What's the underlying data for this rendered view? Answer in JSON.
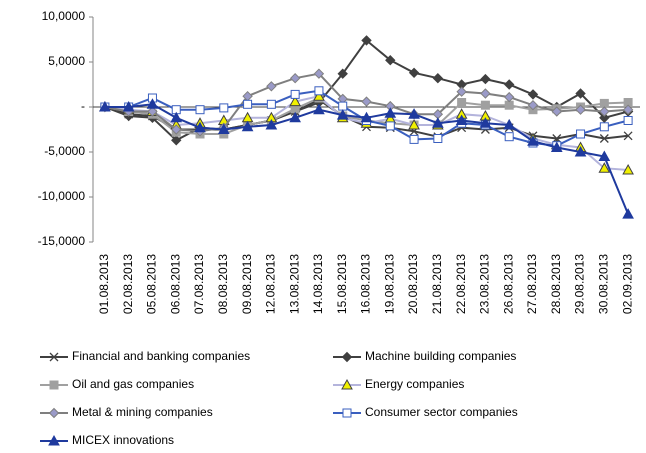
{
  "chart_data": {
    "type": "line",
    "categories": [
      "01.08.2013",
      "02.08.2013",
      "05.08.2013",
      "06.08.2013",
      "07.08.2013",
      "08.08.2013",
      "09.08.2013",
      "12.08.2013",
      "13.08.2013",
      "14.08.2013",
      "15.08.2013",
      "16.08.2013",
      "19.08.2013",
      "20.08.2013",
      "21.08.2013",
      "22.08.2013",
      "23.08.2013",
      "26.08.2013",
      "27.08.2013",
      "28.08.2013",
      "29.08.2013",
      "30.08.2013",
      "02.09.2013"
    ],
    "ylim": [
      -15,
      10
    ],
    "yticks": [
      {
        "value": -15,
        "label": "-15,0000"
      },
      {
        "value": -10,
        "label": "-10,0000"
      },
      {
        "value": -5,
        "label": "-5,0000"
      },
      {
        "value": 0,
        "label": "-"
      },
      {
        "value": 5,
        "label": "5,0000"
      },
      {
        "value": 10,
        "label": "10,0000"
      }
    ],
    "legend": "bottom",
    "series": [
      {
        "name": "Financial and banking companies",
        "color": "#404040",
        "marker": "x",
        "marker_fill": "#404040",
        "values": [
          0,
          -0.8,
          -1,
          -2.5,
          -2.5,
          -2.5,
          -2,
          -1.5,
          -0.5,
          0.8,
          -1,
          -2.2,
          -2.3,
          -2.7,
          -3.3,
          -2.3,
          -2.5,
          -2.3,
          -3.2,
          -3.5,
          -3,
          -3.5,
          -3.2
        ]
      },
      {
        "name": "Machine building companies",
        "color": "#404040",
        "marker": "diamond",
        "marker_fill": "#404040",
        "values": [
          0,
          -1,
          -1.2,
          -3.7,
          -2.3,
          -2.5,
          -2,
          -1.5,
          -0.5,
          0.5,
          3.7,
          7.4,
          5.2,
          3.8,
          3.2,
          2.5,
          3.1,
          2.5,
          1.4,
          0,
          1.5,
          -1.2,
          -0.5
        ]
      },
      {
        "name": "Oil and gas companies",
        "color": "#a0a0a0",
        "marker": "square",
        "marker_fill": "#a0a0a0",
        "values": [
          0,
          -0.5,
          -0.8,
          -2.8,
          -3,
          -3,
          -2,
          -1.5,
          -0.2,
          1,
          -1,
          -1.5,
          -1.8,
          -2,
          -2,
          0.5,
          0.2,
          0.2,
          -0.3,
          -0.2,
          0,
          0.4,
          0.5
        ]
      },
      {
        "name": "Energy companies",
        "color": "#b4b4dc",
        "marker": "triangle",
        "marker_fill": "#f0f000",
        "values": [
          0,
          -0.3,
          -0.5,
          -2,
          -1.8,
          -1.5,
          -1.2,
          -1.2,
          0.6,
          1.2,
          -1.2,
          -1.8,
          -1.3,
          -2,
          -2,
          -0.8,
          -1,
          -2,
          -3.5,
          -4.2,
          -4.5,
          -6.8,
          -7
        ]
      },
      {
        "name": "Metal & mining companies",
        "color": "#7f7f7f",
        "marker": "diamond",
        "marker_fill": "#9a9ac8",
        "values": [
          0,
          -0.5,
          -0.5,
          -2.5,
          -2.7,
          -2.3,
          1.2,
          2.3,
          3.2,
          3.7,
          0.9,
          0.6,
          0.1,
          -0.8,
          -0.8,
          1.7,
          1.5,
          1.1,
          0.2,
          -0.5,
          -0.3,
          -0.5,
          -0.3
        ]
      },
      {
        "name": "Consumer sector companies",
        "color": "#3a5fbf",
        "marker": "square",
        "marker_fill": "#ffffff",
        "values": [
          0,
          0,
          1,
          -0.3,
          -0.3,
          -0.1,
          0.3,
          0.3,
          1.4,
          1.8,
          0.1,
          -1.5,
          -2.1,
          -3.6,
          -3.5,
          -1.8,
          -2,
          -3.3,
          -4,
          -4.3,
          -3,
          -2.2,
          -1.5
        ]
      },
      {
        "name": "MICEX innovations",
        "color": "#1f3a9e",
        "marker": "triangle",
        "marker_fill": "#1f3a9e",
        "values": [
          0,
          0,
          0.3,
          -1.2,
          -2.3,
          -2.5,
          -2.2,
          -2,
          -1.2,
          -0.3,
          -0.9,
          -1.2,
          -0.7,
          -0.8,
          -1.8,
          -1.5,
          -1.8,
          -2,
          -3.8,
          -4.5,
          -5,
          -5.5,
          -11.9
        ]
      }
    ]
  }
}
